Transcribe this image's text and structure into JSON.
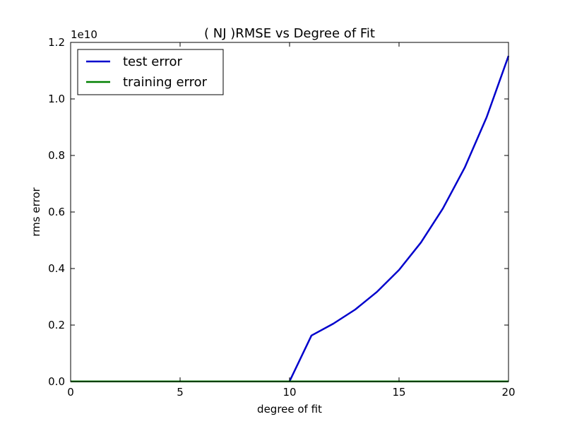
{
  "chart_data": {
    "type": "line",
    "title": "(  NJ  )RMSE vs Degree of Fit",
    "xlabel": "degree of fit",
    "ylabel": "rms error",
    "y_scale_label": "1e10",
    "xlim": [
      0,
      20
    ],
    "ylim": [
      0,
      1.2
    ],
    "x_ticks": [
      0,
      5,
      10,
      15,
      20
    ],
    "x_tick_labels": [
      "0",
      "5",
      "10",
      "15",
      "20"
    ],
    "y_ticks": [
      0,
      0.2,
      0.4,
      0.6,
      0.8,
      1.0,
      1.2
    ],
    "y_tick_labels": [
      "0.0",
      "0.2",
      "0.4",
      "0.6",
      "0.8",
      "1.0",
      "1.2"
    ],
    "grid": false,
    "legend_position": "top-left",
    "x": [
      0,
      1,
      2,
      3,
      4,
      5,
      6,
      7,
      8,
      9,
      10,
      11,
      12,
      13,
      14,
      15,
      16,
      17,
      18,
      19,
      20
    ],
    "series": [
      {
        "name": "test error",
        "color": "#0000cc",
        "values": [
          0.0005,
          0.0005,
          0.0005,
          0.0005,
          0.0005,
          0.0005,
          0.0005,
          0.0005,
          0.0005,
          0.0005,
          0.001,
          0.163,
          0.205,
          0.255,
          0.318,
          0.395,
          0.492,
          0.612,
          0.757,
          0.935,
          1.152
        ]
      },
      {
        "name": "training error",
        "color": "#008000",
        "values": [
          0.0005,
          0.0005,
          0.0005,
          0.0005,
          0.0005,
          0.0005,
          0.0005,
          0.0005,
          0.0005,
          0.0005,
          0.0005,
          0.0005,
          0.0005,
          0.0005,
          0.0005,
          0.0005,
          0.0005,
          0.0005,
          0.0005,
          0.0005,
          0.0005
        ]
      }
    ]
  }
}
